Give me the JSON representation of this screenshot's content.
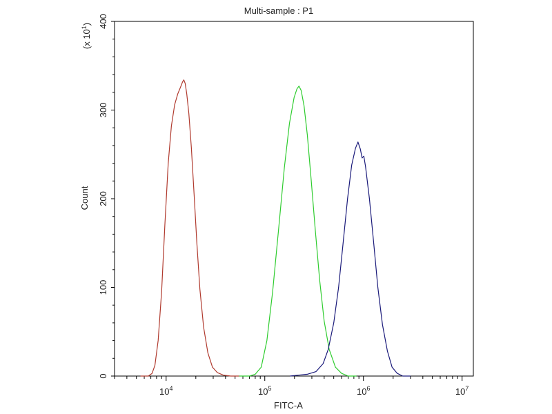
{
  "chart_data": {
    "type": "line",
    "title": "Multi-sample : P1",
    "xlabel": "FITC-A",
    "ylabel": "Count",
    "y_multiplier": {
      "prefix": "(x 10",
      "exponent": "1",
      "suffix": ")"
    },
    "x_scale": "log",
    "xlim": [
      3000,
      13000000
    ],
    "ylim": [
      0,
      400
    ],
    "grid": false,
    "x_ticks": [
      {
        "value": 10000,
        "base": "10",
        "exponent": "4"
      },
      {
        "value": 100000,
        "base": "10",
        "exponent": "5"
      },
      {
        "value": 1000000,
        "base": "10",
        "exponent": "6"
      },
      {
        "value": 10000000,
        "base": "10",
        "exponent": "7"
      }
    ],
    "y_ticks": [
      {
        "value": 0,
        "label": "0"
      },
      {
        "value": 100,
        "label": "100"
      },
      {
        "value": 200,
        "label": "200"
      },
      {
        "value": 300,
        "label": "300"
      },
      {
        "value": 400,
        "label": "400"
      }
    ],
    "series": [
      {
        "color": "#b03a2e",
        "points": [
          [
            5500,
            0
          ],
          [
            6600,
            0
          ],
          [
            7200,
            3
          ],
          [
            7700,
            12
          ],
          [
            8300,
            40
          ],
          [
            9000,
            95
          ],
          [
            9700,
            170
          ],
          [
            10500,
            240
          ],
          [
            11300,
            282
          ],
          [
            12200,
            306
          ],
          [
            13100,
            318
          ],
          [
            14000,
            326
          ],
          [
            14700,
            332
          ],
          [
            15100,
            334
          ],
          [
            15600,
            330
          ],
          [
            16200,
            318
          ],
          [
            17000,
            296
          ],
          [
            18000,
            258
          ],
          [
            19200,
            205
          ],
          [
            20500,
            150
          ],
          [
            22000,
            98
          ],
          [
            24000,
            55
          ],
          [
            26500,
            26
          ],
          [
            29500,
            10
          ],
          [
            33000,
            4
          ],
          [
            38000,
            1
          ],
          [
            45000,
            0
          ],
          [
            55000,
            0
          ]
        ]
      },
      {
        "color": "#2ecc2e",
        "points": [
          [
            55000,
            0
          ],
          [
            70000,
            0
          ],
          [
            80000,
            2
          ],
          [
            92000,
            10
          ],
          [
            105000,
            40
          ],
          [
            120000,
            95
          ],
          [
            138000,
            165
          ],
          [
            158000,
            235
          ],
          [
            178000,
            285
          ],
          [
            198000,
            314
          ],
          [
            212000,
            324
          ],
          [
            222000,
            327
          ],
          [
            234000,
            322
          ],
          [
            250000,
            305
          ],
          [
            270000,
            272
          ],
          [
            295000,
            222
          ],
          [
            325000,
            165
          ],
          [
            360000,
            108
          ],
          [
            400000,
            62
          ],
          [
            450000,
            30
          ],
          [
            520000,
            10
          ],
          [
            600000,
            3
          ],
          [
            700000,
            0
          ],
          [
            850000,
            0
          ]
        ]
      },
      {
        "color": "#1a1a7a",
        "points": [
          [
            180000,
            0
          ],
          [
            220000,
            1
          ],
          [
            270000,
            2
          ],
          [
            330000,
            5
          ],
          [
            390000,
            14
          ],
          [
            440000,
            30
          ],
          [
            500000,
            60
          ],
          [
            560000,
            100
          ],
          [
            620000,
            148
          ],
          [
            690000,
            200
          ],
          [
            760000,
            238
          ],
          [
            830000,
            257
          ],
          [
            880000,
            264
          ],
          [
            930000,
            256
          ],
          [
            970000,
            246
          ],
          [
            1010000,
            248
          ],
          [
            1050000,
            236
          ],
          [
            1150000,
            200
          ],
          [
            1270000,
            150
          ],
          [
            1400000,
            100
          ],
          [
            1560000,
            58
          ],
          [
            1750000,
            28
          ],
          [
            1950000,
            10
          ],
          [
            2200000,
            3
          ],
          [
            2500000,
            0
          ],
          [
            3000000,
            0
          ]
        ]
      }
    ]
  }
}
